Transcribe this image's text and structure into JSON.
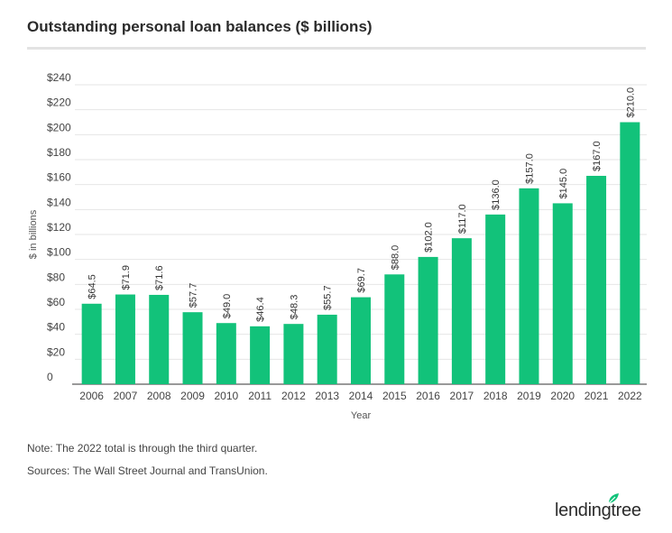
{
  "title": "Outstanding personal loan balances ($ billions)",
  "chart_data": {
    "type": "bar",
    "categories": [
      "2006",
      "2007",
      "2008",
      "2009",
      "2010",
      "2011",
      "2012",
      "2013",
      "2014",
      "2015",
      "2016",
      "2017",
      "2018",
      "2019",
      "2020",
      "2021",
      "2022"
    ],
    "values": [
      64.5,
      71.9,
      71.6,
      57.7,
      49.0,
      46.4,
      48.3,
      55.7,
      69.7,
      88.0,
      102.0,
      117.0,
      136.0,
      157.0,
      145.0,
      167.0,
      210.0
    ],
    "data_labels": [
      "$64.5",
      "$71.9",
      "$71.6",
      "$57.7",
      "$49.0",
      "$46.4",
      "$48.3",
      "$55.7",
      "$69.7",
      "$88.0",
      "$102.0",
      "$117.0",
      "$136.0",
      "$157.0",
      "$145.0",
      "$167.0",
      "$210.0"
    ],
    "yticks": [
      "0",
      "$20",
      "$40",
      "$60",
      "$80",
      "$100",
      "$120",
      "$140",
      "$160",
      "$180",
      "$200",
      "$220",
      "$240"
    ],
    "ylim": [
      0,
      240
    ],
    "xlabel": "Year",
    "ylabel": "$ in billions",
    "bar_color": "#12c27a",
    "grid": true
  },
  "notes": {
    "note": "Note: The 2022 total is through the third quarter.",
    "sources": "Sources: The Wall Street Journal and TransUnion."
  },
  "logo": {
    "text": "lendingtree",
    "icon": "leaf-icon"
  }
}
